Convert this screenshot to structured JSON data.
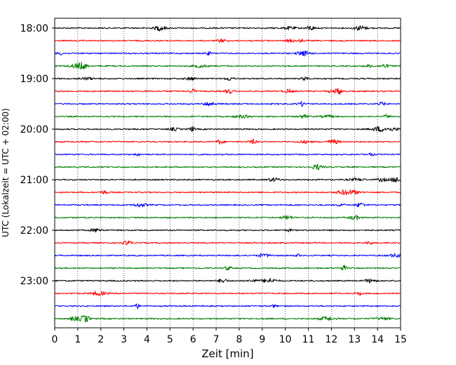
{
  "chart_data": {
    "type": "line",
    "xlabel": "Zeit  [min]",
    "ylabel": "UTC (Lokalzeit = UTC + 02:00)",
    "xlim": [
      0,
      15
    ],
    "x_ticks": [
      "0",
      "1",
      "2",
      "3",
      "4",
      "5",
      "6",
      "7",
      "8",
      "9",
      "10",
      "11",
      "12",
      "13",
      "14",
      "15"
    ],
    "y_ticks": [
      "18:00",
      "19:00",
      "20:00",
      "21:00",
      "22:00",
      "23:00"
    ],
    "grid": "vertical dotted",
    "trace_minutes": 15,
    "traces_per_hour": 4,
    "trace_colors": [
      "#000000",
      "#ff0000",
      "#0000ff",
      "#007f00"
    ],
    "traces": [
      {
        "start": "18:00",
        "color": "#000000"
      },
      {
        "start": "18:15",
        "color": "#ff0000"
      },
      {
        "start": "18:30",
        "color": "#0000ff"
      },
      {
        "start": "18:45",
        "color": "#007f00"
      },
      {
        "start": "19:00",
        "color": "#000000"
      },
      {
        "start": "19:15",
        "color": "#ff0000"
      },
      {
        "start": "19:30",
        "color": "#0000ff"
      },
      {
        "start": "19:45",
        "color": "#007f00"
      },
      {
        "start": "20:00",
        "color": "#000000"
      },
      {
        "start": "20:15",
        "color": "#ff0000"
      },
      {
        "start": "20:30",
        "color": "#0000ff"
      },
      {
        "start": "20:45",
        "color": "#007f00"
      },
      {
        "start": "21:00",
        "color": "#000000"
      },
      {
        "start": "21:15",
        "color": "#ff0000"
      },
      {
        "start": "21:30",
        "color": "#0000ff"
      },
      {
        "start": "21:45",
        "color": "#007f00"
      },
      {
        "start": "22:00",
        "color": "#000000"
      },
      {
        "start": "22:15",
        "color": "#ff0000"
      },
      {
        "start": "22:30",
        "color": "#0000ff"
      },
      {
        "start": "22:45",
        "color": "#007f00"
      },
      {
        "start": "23:00",
        "color": "#000000"
      },
      {
        "start": "23:15",
        "color": "#ff0000"
      },
      {
        "start": "23:30",
        "color": "#0000ff"
      },
      {
        "start": "23:45",
        "color": "#007f00"
      }
    ]
  }
}
